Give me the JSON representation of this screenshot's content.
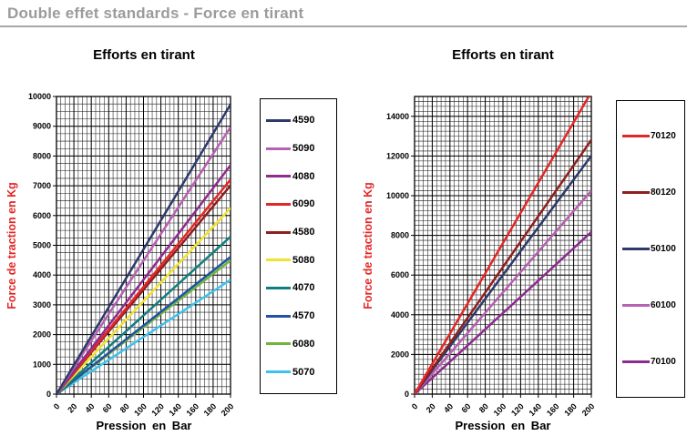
{
  "page": {
    "title": "Double effet standards - Force en tirant"
  },
  "chart_data": [
    {
      "type": "line",
      "title": "Efforts en tirant",
      "xlabel": "Pression en Bar",
      "ylabel": "Force de traction en Kg",
      "ylabel_color": "#e32726",
      "xlim": [
        0,
        200
      ],
      "ylim": [
        0,
        10000
      ],
      "x_ticks": [
        0,
        20,
        40,
        60,
        80,
        100,
        120,
        140,
        160,
        180,
        200
      ],
      "y_ticks": [
        0,
        1000,
        2000,
        3000,
        4000,
        5000,
        6000,
        7000,
        8000,
        9000,
        10000
      ],
      "x_minor_step": 5,
      "y_minor_step": 250,
      "grid": true,
      "legend_position": "right",
      "series": [
        {
          "name": "4590",
          "color": "#2d3a6a",
          "x": [
            0,
            200
          ],
          "y": [
            0,
            9730
          ]
        },
        {
          "name": "5090",
          "color": "#b661b1",
          "x": [
            0,
            200
          ],
          "y": [
            0,
            8970
          ]
        },
        {
          "name": "4080",
          "color": "#8e2b8e",
          "x": [
            0,
            200
          ],
          "y": [
            0,
            7690
          ]
        },
        {
          "name": "6090",
          "color": "#e32726",
          "x": [
            0,
            200
          ],
          "y": [
            0,
            7210
          ]
        },
        {
          "name": "4580",
          "color": "#8e1f1f",
          "x": [
            0,
            200
          ],
          "y": [
            0,
            7010
          ]
        },
        {
          "name": "5080",
          "color": "#efe32e",
          "x": [
            0,
            200
          ],
          "y": [
            0,
            6250
          ]
        },
        {
          "name": "4070",
          "color": "#117f7e",
          "x": [
            0,
            200
          ],
          "y": [
            0,
            5290
          ]
        },
        {
          "name": "4570",
          "color": "#2152a3",
          "x": [
            0,
            200
          ],
          "y": [
            0,
            4610
          ]
        },
        {
          "name": "6080",
          "color": "#6fb43f",
          "x": [
            0,
            200
          ],
          "y": [
            0,
            4490
          ]
        },
        {
          "name": "5070",
          "color": "#3ec1ed",
          "x": [
            0,
            200
          ],
          "y": [
            0,
            3840
          ]
        }
      ]
    },
    {
      "type": "line",
      "title": "Efforts en tirant",
      "xlabel": "Pression en Bar",
      "ylabel": "Force de traction en Kg",
      "ylabel_color": "#e32726",
      "xlim": [
        0,
        200
      ],
      "ylim": [
        0,
        15000
      ],
      "x_ticks": [
        0,
        20,
        40,
        60,
        80,
        100,
        120,
        140,
        160,
        180,
        200
      ],
      "y_ticks": [
        0,
        2000,
        4000,
        6000,
        8000,
        10000,
        12000,
        14000
      ],
      "x_minor_step": 5,
      "y_minor_step": 250,
      "grid": true,
      "legend_position": "right",
      "series": [
        {
          "name": "70120",
          "color": "#e32726",
          "x": [
            0,
            200
          ],
          "y": [
            0,
            15220
          ]
        },
        {
          "name": "80120",
          "color": "#8e1f1f",
          "x": [
            0,
            200
          ],
          "y": [
            0,
            12810
          ]
        },
        {
          "name": "50100",
          "color": "#2d3a6a",
          "x": [
            0,
            200
          ],
          "y": [
            0,
            12010
          ]
        },
        {
          "name": "60100",
          "color": "#b661b1",
          "x": [
            0,
            200
          ],
          "y": [
            0,
            10250
          ]
        },
        {
          "name": "70100",
          "color": "#8e2b8e",
          "x": [
            0,
            200
          ],
          "y": [
            0,
            8170
          ]
        }
      ]
    }
  ]
}
